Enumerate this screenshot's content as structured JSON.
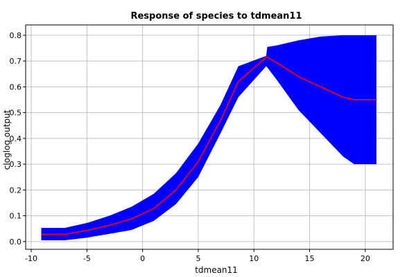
{
  "chart_data": {
    "type": "line",
    "title": "Response of species to tdmean11",
    "xlabel": "tdmean11",
    "ylabel": "cloglog output",
    "xlim": [
      -10.5,
      22.5
    ],
    "ylim": [
      -0.03,
      0.84
    ],
    "xticks": [
      -10,
      -5,
      0,
      5,
      10,
      15,
      20
    ],
    "yticks": [
      0.0,
      0.1,
      0.2,
      0.3,
      0.4,
      0.5,
      0.6,
      0.7,
      0.8
    ],
    "xtick_labels": [
      "-10",
      "-5",
      "0",
      "5",
      "10",
      "15",
      "20"
    ],
    "ytick_labels": [
      "0.0",
      "0.1",
      "0.2",
      "0.3",
      "0.4",
      "0.5",
      "0.6",
      "0.7",
      "0.8"
    ],
    "grid": true,
    "band_color": "#0000ff",
    "line_color": "#e00020",
    "series": [
      {
        "x": [
          -9.1,
          -7.0,
          -5.0,
          -3.0,
          -1.0,
          1.0,
          3.0,
          5.0,
          7.0,
          8.6,
          11.1,
          11.2,
          12.0,
          14.0,
          16.0,
          18.0,
          19.0,
          21.0
        ],
        "mean": [
          0.028,
          0.028,
          0.043,
          0.063,
          0.088,
          0.128,
          0.2,
          0.31,
          0.47,
          0.62,
          0.715,
          0.715,
          0.695,
          0.64,
          0.6,
          0.56,
          0.55,
          0.55
        ],
        "lower": [
          0.005,
          0.005,
          0.015,
          0.03,
          0.045,
          0.08,
          0.145,
          0.25,
          0.42,
          0.56,
          0.68,
          0.675,
          0.63,
          0.51,
          0.42,
          0.33,
          0.3,
          0.3
        ],
        "upper": [
          0.053,
          0.053,
          0.072,
          0.1,
          0.135,
          0.185,
          0.265,
          0.38,
          0.53,
          0.68,
          0.72,
          0.755,
          0.76,
          0.78,
          0.795,
          0.8,
          0.8,
          0.8
        ]
      }
    ]
  }
}
